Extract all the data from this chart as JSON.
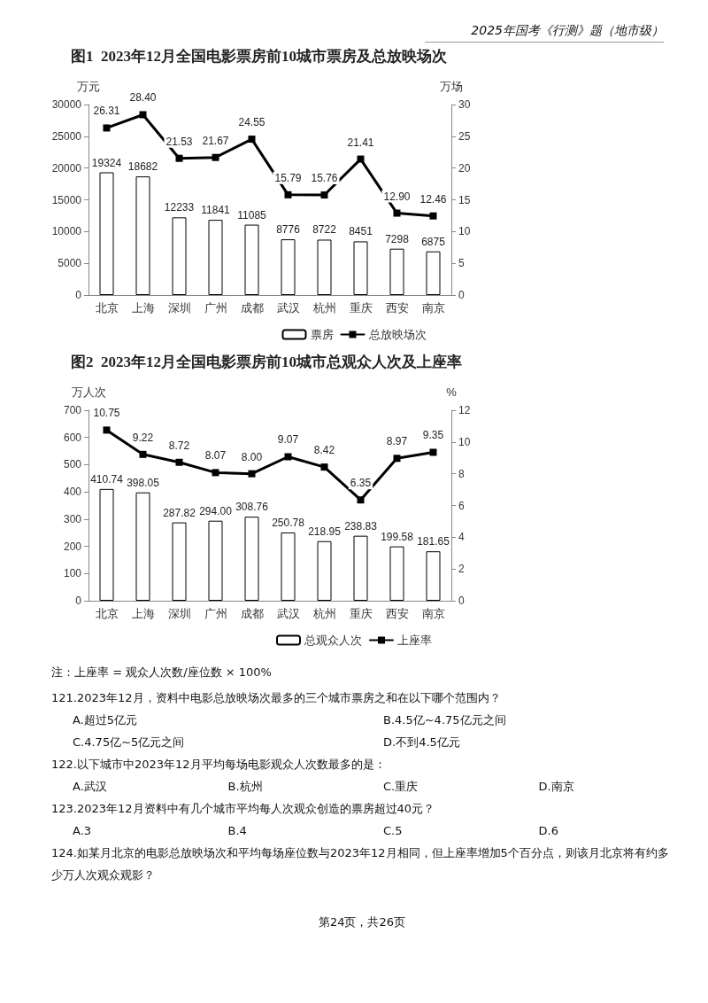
{
  "chart_data": [
    {
      "type": "other",
      "annotations": [
        "2025年国考《行测》题（地市级）"
      ]
    },
    {
      "type": "bar",
      "title": "图1  2023年12月全国电影票房前10城市票房及总放映场次",
      "ylabel": "万元",
      "y2label": "万场",
      "categories": [
        "北京",
        "上海",
        "深圳",
        "广州",
        "成都",
        "武汉",
        "杭州",
        "重庆",
        "西安",
        "南京"
      ],
      "series": [
        {
          "name": "票房",
          "color": "#ffffff",
          "values": [
            19324,
            18682,
            12233,
            11841,
            11085,
            8776,
            8722,
            8451,
            7298,
            6875
          ],
          "value_labels": [
            "19324",
            "18682",
            "12233",
            "11841",
            "11085",
            "8776",
            "8722",
            "8451",
            "7298",
            "6875"
          ]
        },
        {
          "name": "总放映场次",
          "type": "line",
          "axis": "y2",
          "color": "#000000",
          "values": [
            26.31,
            28.4,
            21.53,
            21.67,
            24.55,
            15.79,
            15.76,
            21.41,
            12.9,
            12.46
          ],
          "value_labels": [
            "26.31",
            "28.40",
            "21.53",
            "21.67",
            "24.55",
            "15.79",
            "15.76",
            "21.41",
            "12.90",
            "12.46"
          ]
        }
      ],
      "ylim": [
        0,
        30000
      ],
      "yticks": [
        0,
        5000,
        10000,
        15000,
        20000,
        25000,
        30000
      ],
      "y2lim": [
        0,
        30
      ],
      "y2ticks": [
        0,
        5,
        10,
        15,
        20,
        25,
        30
      ],
      "marker": "square",
      "line_style": "solid",
      "legend": "bottom"
    },
    {
      "type": "bar",
      "title": "图2  2023年12月全国电影票房前10城市总观众人次及上座率",
      "ylabel": "万人次",
      "y2label": "%",
      "categories": [
        "北京",
        "上海",
        "深圳",
        "广州",
        "成都",
        "武汉",
        "杭州",
        "重庆",
        "西安",
        "南京"
      ],
      "series": [
        {
          "name": "总观众人次",
          "color": "#ffffff",
          "values": [
            410.74,
            398.05,
            287.82,
            294.0,
            308.76,
            250.78,
            218.95,
            238.83,
            199.58,
            181.65
          ],
          "value_labels": [
            "410.74",
            "398.05",
            "287.82",
            "294.00",
            "308.76",
            "250.78",
            "218.95",
            "238.83",
            "199.58",
            "181.65"
          ]
        },
        {
          "name": "上座率",
          "type": "line",
          "axis": "y2",
          "color": "#000000",
          "values": [
            10.75,
            9.22,
            8.72,
            8.07,
            8.0,
            9.07,
            8.42,
            6.35,
            8.97,
            9.35
          ],
          "value_labels": [
            "10.75",
            "9.22",
            "8.72",
            "8.07",
            "8.00",
            "9.07",
            "8.42",
            "6.35",
            "8.97",
            "9.35"
          ]
        }
      ],
      "ylim": [
        0,
        700
      ],
      "yticks": [
        0,
        100,
        200,
        300,
        400,
        500,
        600,
        700
      ],
      "y2lim": [
        0,
        12
      ],
      "y2ticks": [
        0,
        2,
        4,
        6,
        8,
        10,
        12
      ],
      "marker": "square",
      "line_style": "solid",
      "legend": "bottom",
      "annotations": [
        "注：上座率 = 观众人次数/座位数 × 100%"
      ]
    },
    {
      "type": "other",
      "annotations": [
        "121.2023年12月，资料中电影总放映场次最多的三个城市票房之和在以下哪个范围内？",
        "A.超过5亿元",
        "B.4.5亿~4.75亿元之间",
        "C.4.75亿~5亿元之间",
        "D.不到4.5亿元",
        "122.以下城市中2023年12月平均每场电影观众人次数最多的是：",
        "A.武汉",
        "B.杭州",
        "C.重庆",
        "D.南京",
        "123.2023年12月资料中有几个城市平均每人次观众创造的票房超过40元？",
        "A.3",
        "B.4",
        "C.5",
        "D.6",
        "124.如某月北京的电影总放映场次和平均每场座位数与2023年12月相同，但上座率增加5个百分点，则该月北京将有约多少万人次观众观影？",
        "第24页，共26页"
      ]
    }
  ]
}
